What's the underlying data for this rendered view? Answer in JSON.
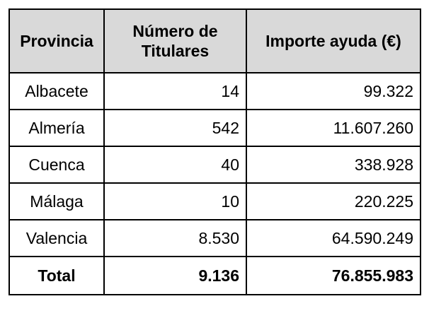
{
  "table": {
    "headers": [
      "Provincia",
      "Número de Titulares",
      "Importe ayuda (€)"
    ],
    "rows": [
      {
        "provincia": "Albacete",
        "titulares": "14",
        "importe": "99.322"
      },
      {
        "provincia": "Almería",
        "titulares": "542",
        "importe": "11.607.260"
      },
      {
        "provincia": "Cuenca",
        "titulares": "40",
        "importe": "338.928"
      },
      {
        "provincia": "Málaga",
        "titulares": "10",
        "importe": "220.225"
      },
      {
        "provincia": "Valencia",
        "titulares": "8.530",
        "importe": "64.590.249"
      }
    ],
    "total": {
      "label": "Total",
      "titulares": "9.136",
      "importe": "76.855.983"
    }
  },
  "colors": {
    "header_background": "#d9d9d9",
    "border": "#000000"
  }
}
